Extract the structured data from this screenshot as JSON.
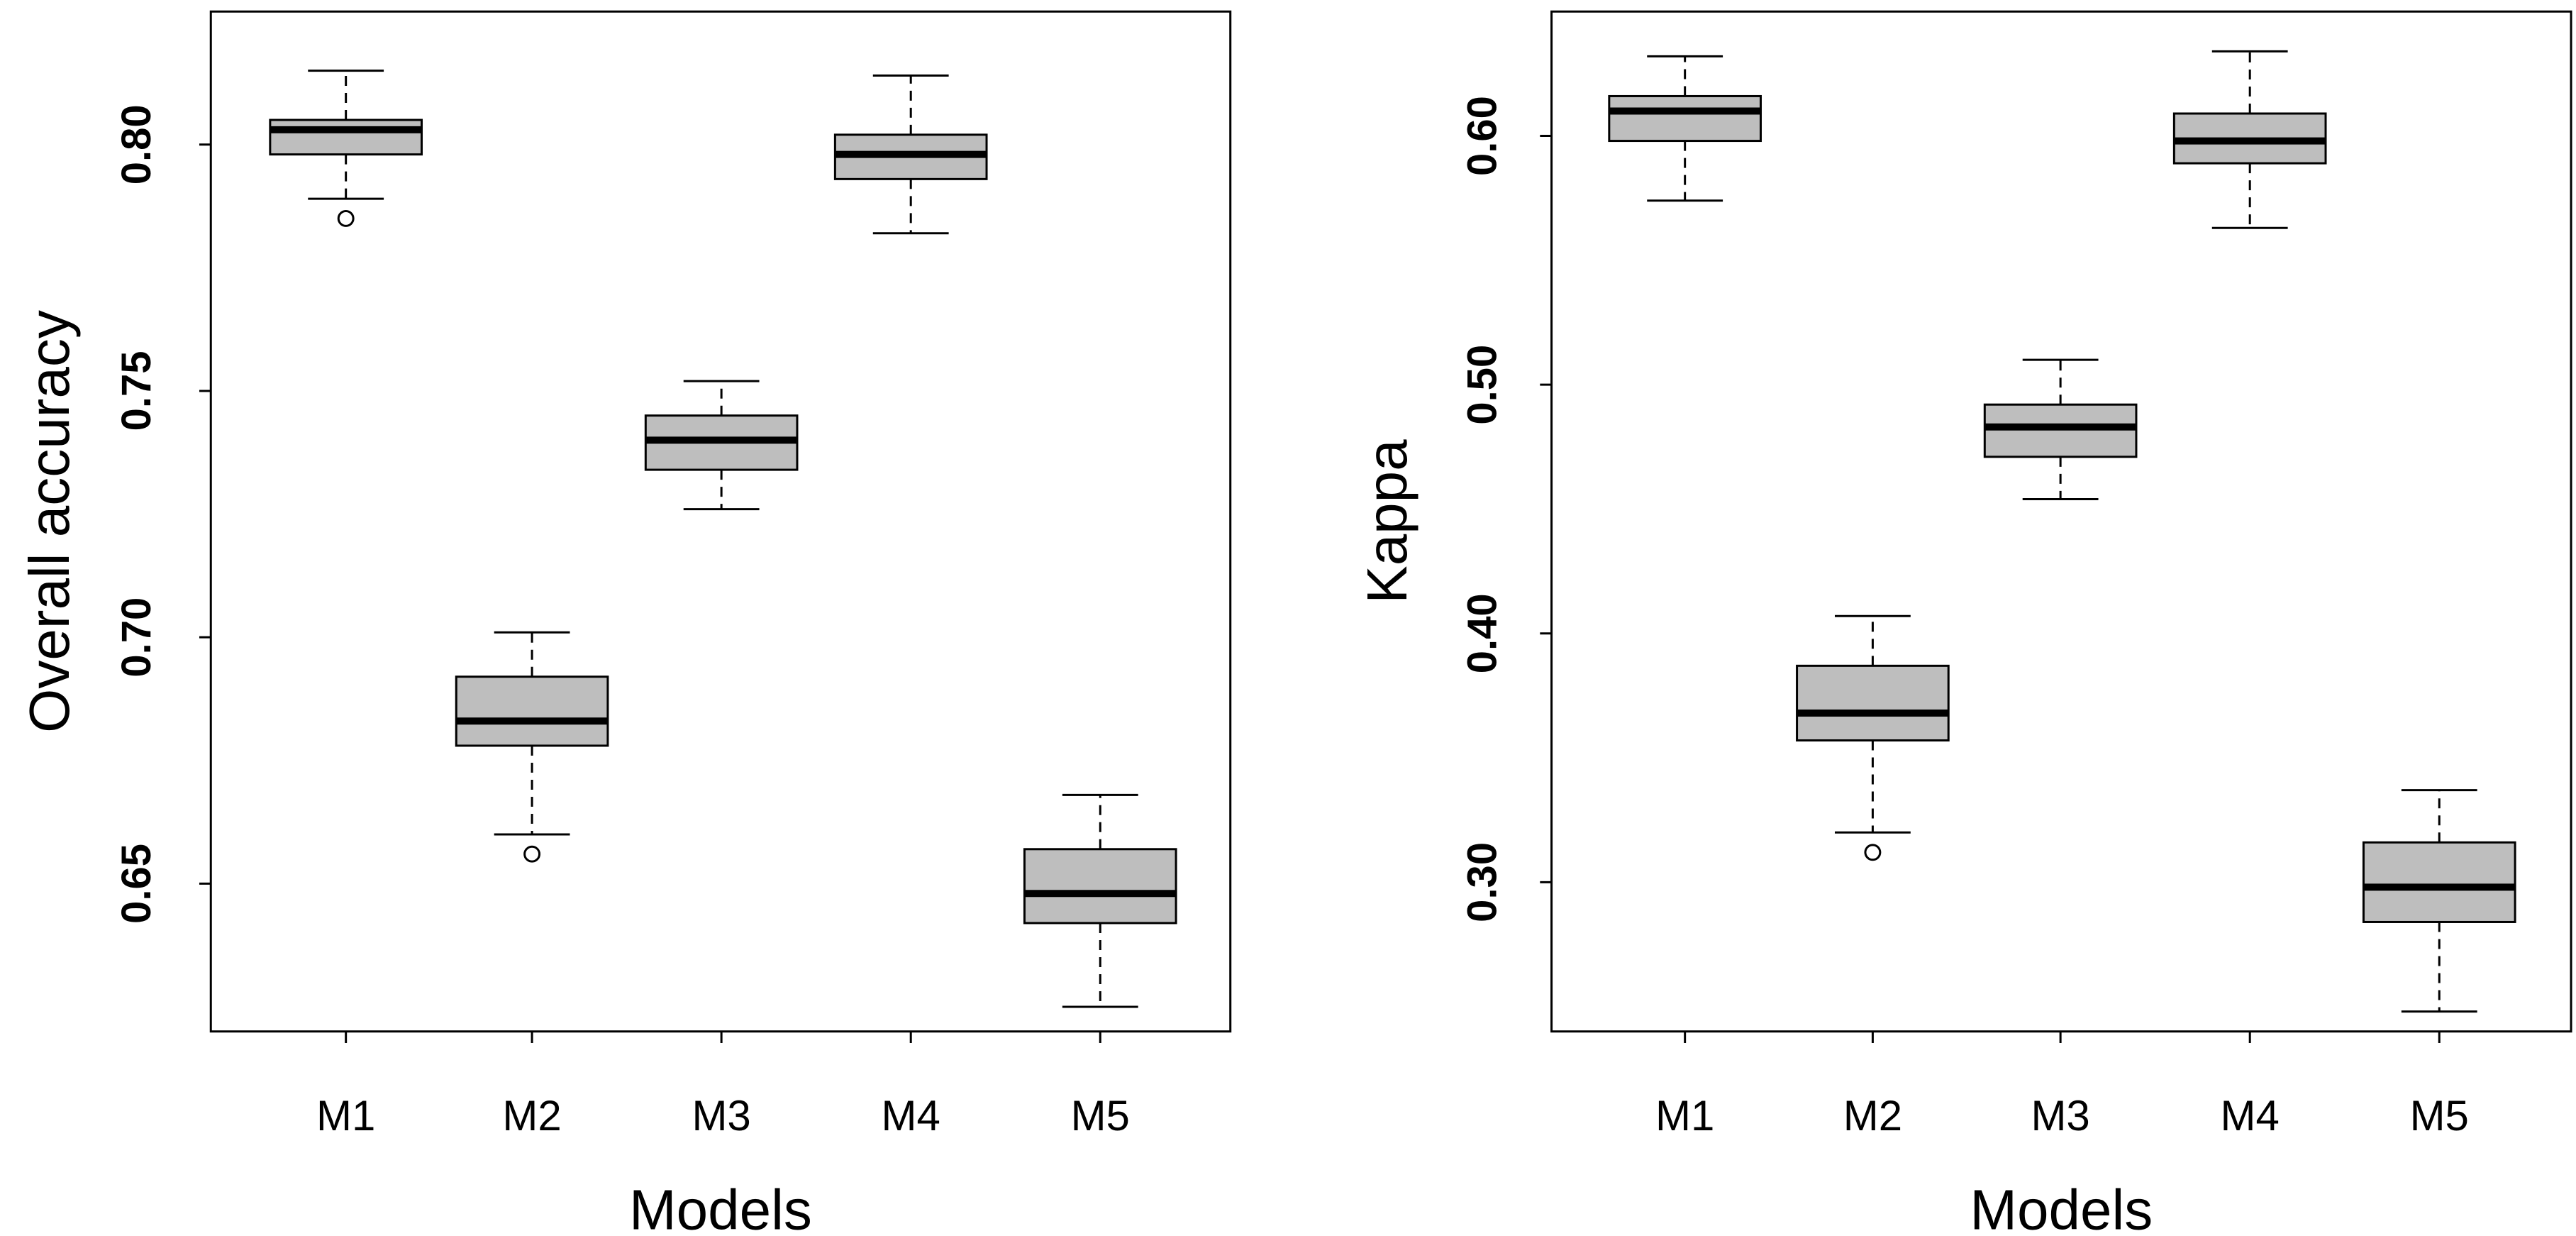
{
  "chart_data": [
    {
      "type": "boxplot",
      "title": "",
      "xlabel": "Models",
      "ylabel": "Overall accuracy",
      "categories": [
        "M1",
        "M2",
        "M3",
        "M4",
        "M5"
      ],
      "yticks": [
        0.65,
        0.7,
        0.75,
        0.8
      ],
      "ytick_labels": [
        "0.65",
        "0.70",
        "0.75",
        "0.80"
      ],
      "ylim": [
        0.62,
        0.827
      ],
      "box_color": "#bebebe",
      "boxes": [
        {
          "name": "M1",
          "whisker_low": 0.789,
          "q1": 0.798,
          "median": 0.803,
          "q3": 0.805,
          "whisker_high": 0.815,
          "outliers": [
            0.785
          ]
        },
        {
          "name": "M2",
          "whisker_low": 0.66,
          "q1": 0.678,
          "median": 0.683,
          "q3": 0.692,
          "whisker_high": 0.701,
          "outliers": [
            0.656
          ]
        },
        {
          "name": "M3",
          "whisker_low": 0.726,
          "q1": 0.734,
          "median": 0.74,
          "q3": 0.745,
          "whisker_high": 0.752,
          "outliers": []
        },
        {
          "name": "M4",
          "whisker_low": 0.782,
          "q1": 0.793,
          "median": 0.798,
          "q3": 0.802,
          "whisker_high": 0.814,
          "outliers": []
        },
        {
          "name": "M5",
          "whisker_low": 0.625,
          "q1": 0.642,
          "median": 0.648,
          "q3": 0.657,
          "whisker_high": 0.668,
          "outliers": []
        }
      ]
    },
    {
      "type": "boxplot",
      "title": "",
      "xlabel": "Models",
      "ylabel": "Kappa",
      "categories": [
        "M1",
        "M2",
        "M3",
        "M4",
        "M5"
      ],
      "yticks": [
        0.3,
        0.4,
        0.5,
        0.6
      ],
      "ytick_labels": [
        "0.30",
        "0.40",
        "0.50",
        "0.60"
      ],
      "ylim": [
        0.24,
        0.65
      ],
      "box_color": "#bebebe",
      "boxes": [
        {
          "name": "M1",
          "whisker_low": 0.574,
          "q1": 0.598,
          "median": 0.61,
          "q3": 0.616,
          "whisker_high": 0.632,
          "outliers": []
        },
        {
          "name": "M2",
          "whisker_low": 0.32,
          "q1": 0.357,
          "median": 0.368,
          "q3": 0.387,
          "whisker_high": 0.407,
          "outliers": [
            0.312
          ]
        },
        {
          "name": "M3",
          "whisker_low": 0.454,
          "q1": 0.471,
          "median": 0.483,
          "q3": 0.492,
          "whisker_high": 0.51,
          "outliers": []
        },
        {
          "name": "M4",
          "whisker_low": 0.563,
          "q1": 0.589,
          "median": 0.598,
          "q3": 0.609,
          "whisker_high": 0.634,
          "outliers": []
        },
        {
          "name": "M5",
          "whisker_low": 0.248,
          "q1": 0.284,
          "median": 0.298,
          "q3": 0.316,
          "whisker_high": 0.337,
          "outliers": []
        }
      ]
    }
  ]
}
